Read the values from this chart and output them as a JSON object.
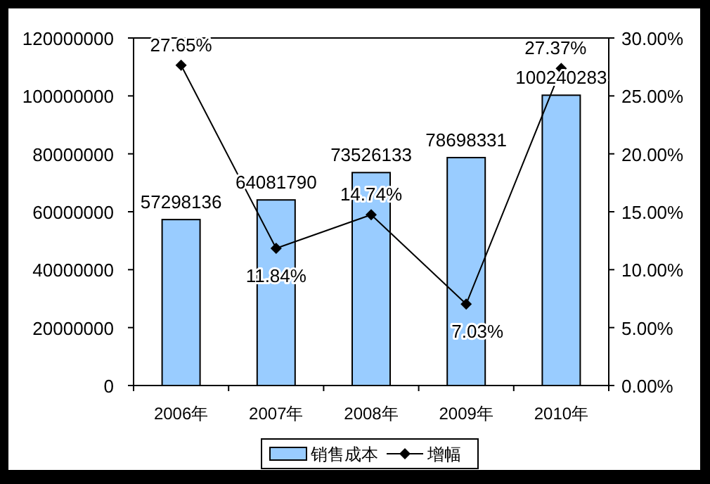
{
  "chart_data": {
    "type": "bar",
    "categories": [
      "2006年",
      "2007年",
      "2008年",
      "2009年",
      "2010年"
    ],
    "series": [
      {
        "name": "销售成本",
        "color": "#99ccff",
        "values": [
          57298136,
          64081790,
          73526133,
          78698331,
          100240283
        ],
        "value_labels": [
          "57298136",
          "64081790",
          "73526133",
          "78698331",
          "100240283"
        ]
      },
      {
        "name": "增幅",
        "type": "line",
        "axis": "y2",
        "color": "#000000",
        "marker": "diamond",
        "values": [
          27.65,
          11.84,
          14.74,
          7.03,
          27.37
        ],
        "value_labels": [
          "27.65%",
          "11.84%",
          "14.74%",
          "7.03%",
          "27.37%"
        ]
      }
    ],
    "ylim": [
      0,
      120000000
    ],
    "yticks": [
      0,
      20000000,
      40000000,
      60000000,
      80000000,
      100000000,
      120000000
    ],
    "y2lim": [
      0,
      30
    ],
    "y2ticks": [
      {
        "value": 0,
        "label": "0.00%"
      },
      {
        "value": 5,
        "label": "5.00%"
      },
      {
        "value": 10,
        "label": "10.00%"
      },
      {
        "value": 15,
        "label": "15.00%"
      },
      {
        "value": 20,
        "label": "20.00%"
      },
      {
        "value": 25,
        "label": "25.00%"
      },
      {
        "value": 30,
        "label": "30.00%"
      }
    ],
    "legend": "bottom",
    "grid": false
  }
}
